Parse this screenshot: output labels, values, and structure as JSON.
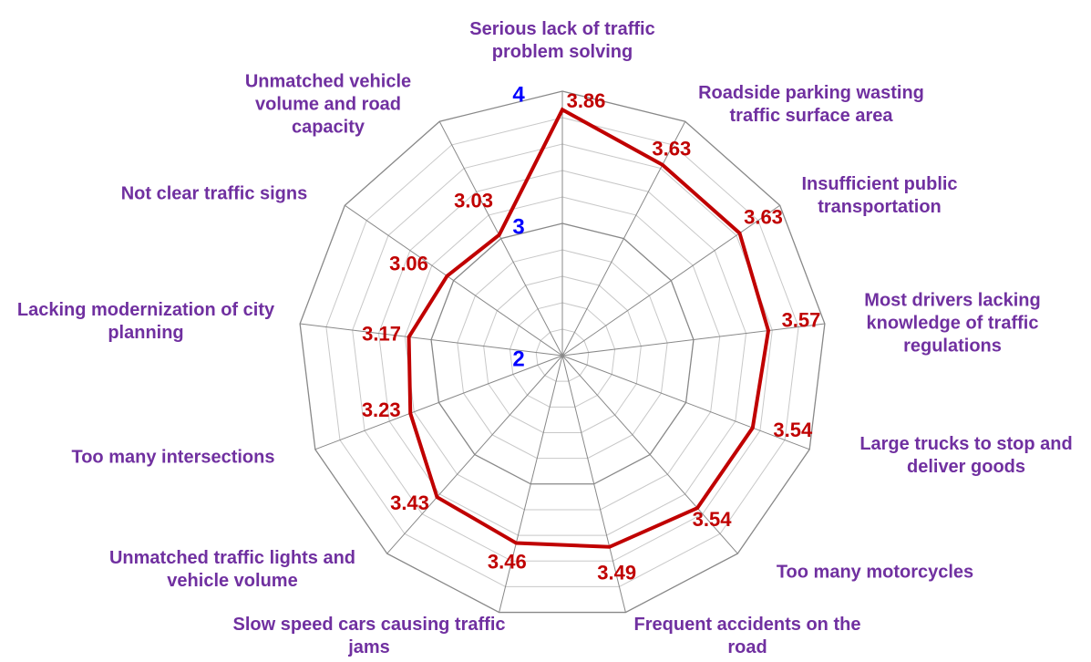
{
  "chart_data": {
    "type": "radar",
    "categories": [
      "Serious lack of traffic problem solving",
      "Roadside parking wasting traffic surface area",
      "Insufficient public transportation",
      "Most drivers lacking knowledge of traffic regulations",
      "Large trucks to stop and deliver goods",
      "Too many motorcycles",
      "Frequent accidents on the road",
      "Slow speed cars causing traffic jams",
      "Unmatched traffic lights and vehicle volume",
      "Too many intersections",
      "Lacking modernization of city planning",
      "Not clear traffic signs",
      "Unmatched vehicle volume and road capacity"
    ],
    "series": [
      {
        "color": "#c00000",
        "values": [
          3.86,
          3.63,
          3.63,
          3.57,
          3.54,
          3.54,
          3.49,
          3.46,
          3.43,
          3.23,
          3.17,
          3.06,
          3.03
        ]
      }
    ],
    "ylim": [
      2,
      4
    ],
    "yticks": [
      2,
      3,
      4
    ],
    "grid": true
  }
}
